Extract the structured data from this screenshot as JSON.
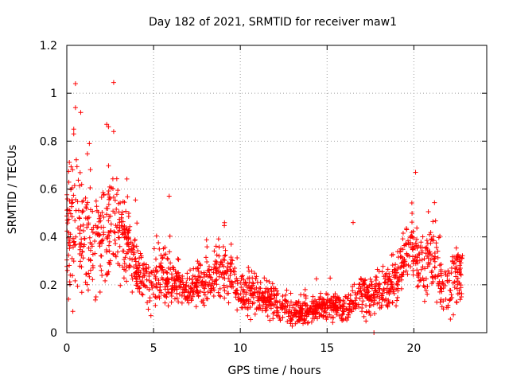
{
  "chart_data": {
    "type": "scatter",
    "title": "Day 182 of 2021, SRMTID for receiver maw1",
    "xlabel": "GPS time / hours",
    "ylabel": "SRMTID / TECUs",
    "xlim": [
      0,
      24.2
    ],
    "ylim": [
      0,
      1.2
    ],
    "x_ticks": [
      0,
      5,
      10,
      15,
      20
    ],
    "y_ticks": [
      0,
      0.2,
      0.4,
      0.6,
      0.8,
      1,
      1.2
    ],
    "x_tick_labels": [
      "0",
      "5",
      "10",
      "15",
      "20"
    ],
    "y_tick_labels": [
      "0",
      "0.2",
      "0.4",
      "0.6",
      "0.8",
      "1",
      "1.2"
    ],
    "grid": true,
    "marker": "plus",
    "color": "#ff0000",
    "profile": [
      [
        0.0,
        0.38,
        0.16
      ],
      [
        0.5,
        0.45,
        0.18
      ],
      [
        1.0,
        0.42,
        0.16
      ],
      [
        1.5,
        0.38,
        0.16
      ],
      [
        2.0,
        0.4,
        0.15
      ],
      [
        2.5,
        0.48,
        0.17
      ],
      [
        3.0,
        0.45,
        0.15
      ],
      [
        3.5,
        0.38,
        0.12
      ],
      [
        4.0,
        0.28,
        0.09
      ],
      [
        4.5,
        0.22,
        0.07
      ],
      [
        5.0,
        0.2,
        0.07
      ],
      [
        5.5,
        0.26,
        0.09
      ],
      [
        6.0,
        0.22,
        0.07
      ],
      [
        6.5,
        0.2,
        0.06
      ],
      [
        7.0,
        0.18,
        0.06
      ],
      [
        7.5,
        0.2,
        0.07
      ],
      [
        8.0,
        0.2,
        0.07
      ],
      [
        8.5,
        0.24,
        0.08
      ],
      [
        9.0,
        0.26,
        0.09
      ],
      [
        9.5,
        0.24,
        0.08
      ],
      [
        10.0,
        0.14,
        0.05
      ],
      [
        10.5,
        0.18,
        0.06
      ],
      [
        11.0,
        0.16,
        0.06
      ],
      [
        11.5,
        0.14,
        0.05
      ],
      [
        12.0,
        0.12,
        0.05
      ],
      [
        12.5,
        0.11,
        0.05
      ],
      [
        13.0,
        0.08,
        0.04
      ],
      [
        13.5,
        0.09,
        0.04
      ],
      [
        14.0,
        0.09,
        0.04
      ],
      [
        14.5,
        0.1,
        0.04
      ],
      [
        15.0,
        0.11,
        0.04
      ],
      [
        15.5,
        0.11,
        0.04
      ],
      [
        16.0,
        0.09,
        0.04
      ],
      [
        16.5,
        0.13,
        0.05
      ],
      [
        17.0,
        0.17,
        0.06
      ],
      [
        17.5,
        0.16,
        0.06
      ],
      [
        18.0,
        0.15,
        0.06
      ],
      [
        18.5,
        0.18,
        0.06
      ],
      [
        19.0,
        0.24,
        0.08
      ],
      [
        19.5,
        0.32,
        0.09
      ],
      [
        20.0,
        0.36,
        0.1
      ],
      [
        20.5,
        0.26,
        0.09
      ],
      [
        21.0,
        0.32,
        0.1
      ],
      [
        21.5,
        0.22,
        0.08
      ],
      [
        22.0,
        0.2,
        0.07
      ],
      [
        22.5,
        0.28,
        0.1
      ],
      [
        22.8,
        0.2,
        0.07
      ]
    ],
    "notable_points": [
      [
        0.5,
        1.04
      ],
      [
        2.7,
        1.045
      ],
      [
        0.5,
        0.94
      ],
      [
        0.8,
        0.92
      ],
      [
        0.4,
        0.85
      ],
      [
        0.4,
        0.83
      ],
      [
        2.3,
        0.87
      ],
      [
        2.4,
        0.86
      ],
      [
        2.7,
        0.84
      ],
      [
        1.3,
        0.79
      ],
      [
        20.1,
        0.67
      ],
      [
        16.5,
        0.46
      ],
      [
        5.9,
        0.57
      ],
      [
        0.1,
        0.14
      ],
      [
        17.7,
        0.0
      ]
    ],
    "seed": 182,
    "points_per_hour": 80
  }
}
